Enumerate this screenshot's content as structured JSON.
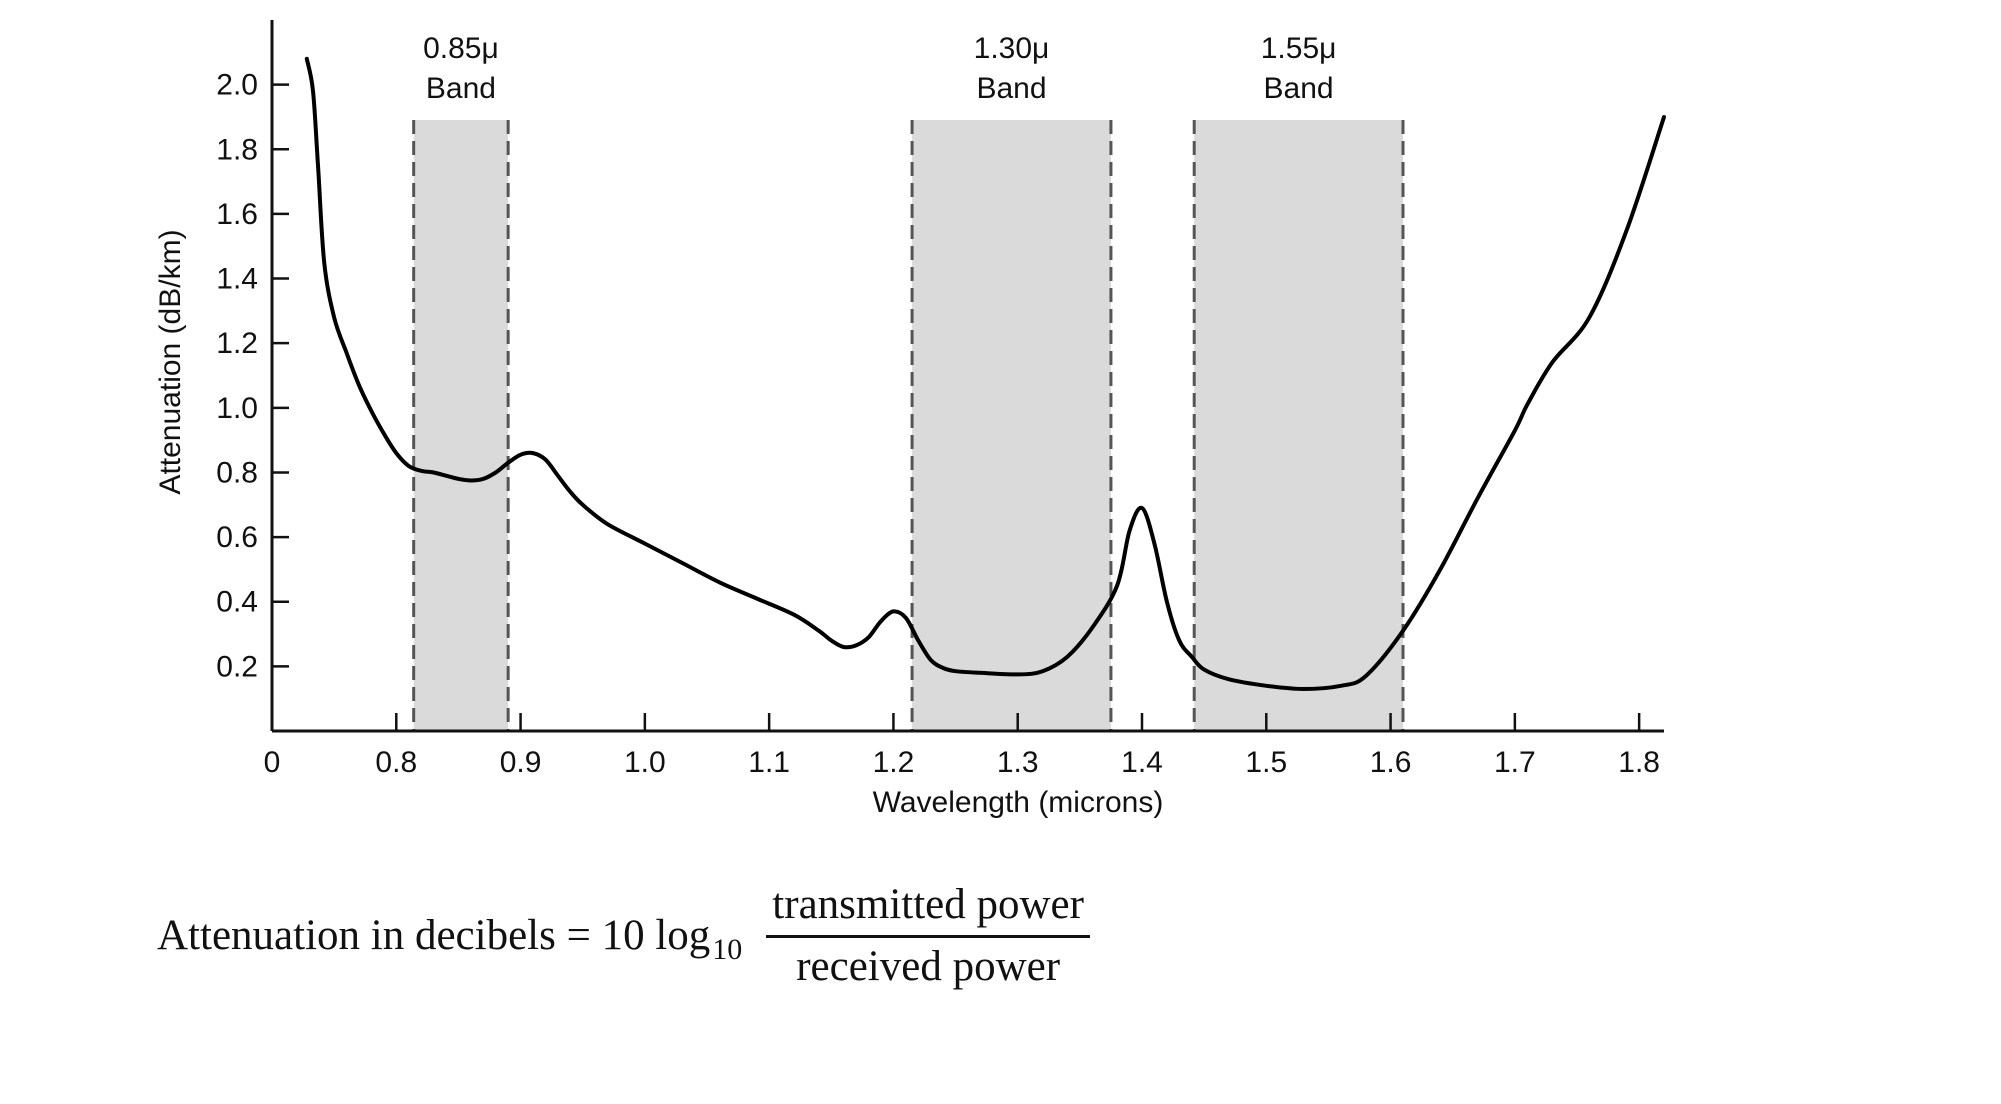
{
  "chart_data": {
    "type": "line",
    "title": "",
    "xlabel": "Wavelength (microns)",
    "ylabel": "Attenuation (dB/km)",
    "x_ticks": [
      {
        "value": 0.7,
        "label": "0"
      },
      {
        "value": 0.8,
        "label": "0.8"
      },
      {
        "value": 0.9,
        "label": "0.9"
      },
      {
        "value": 1.0,
        "label": "1.0"
      },
      {
        "value": 1.1,
        "label": "1.1"
      },
      {
        "value": 1.2,
        "label": "1.2"
      },
      {
        "value": 1.3,
        "label": "1.3"
      },
      {
        "value": 1.4,
        "label": "1.4"
      },
      {
        "value": 1.5,
        "label": "1.5"
      },
      {
        "value": 1.6,
        "label": "1.6"
      },
      {
        "value": 1.7,
        "label": "1.7"
      },
      {
        "value": 1.8,
        "label": "1.8"
      }
    ],
    "y_ticks": [
      {
        "value": 0.2,
        "label": "0.2"
      },
      {
        "value": 0.4,
        "label": "0.4"
      },
      {
        "value": 0.6,
        "label": "0.6"
      },
      {
        "value": 0.8,
        "label": "0.8"
      },
      {
        "value": 1.0,
        "label": "1.0"
      },
      {
        "value": 1.2,
        "label": "1.2"
      },
      {
        "value": 1.4,
        "label": "1.4"
      },
      {
        "value": 1.6,
        "label": "1.6"
      },
      {
        "value": 1.8,
        "label": "1.8"
      },
      {
        "value": 2.0,
        "label": "2.0"
      }
    ],
    "xlim": [
      0.7,
      1.82
    ],
    "ylim": [
      0.0,
      2.2
    ],
    "grid": false,
    "bands": [
      {
        "label_line1": "0.85μ",
        "label_line2": "Band",
        "x_start": 0.814,
        "x_end": 0.89
      },
      {
        "label_line1": "1.30μ",
        "label_line2": "Band",
        "x_start": 1.215,
        "x_end": 1.375
      },
      {
        "label_line1": "1.55μ",
        "label_line2": "Band",
        "x_start": 1.442,
        "x_end": 1.61
      }
    ],
    "series": [
      {
        "x": [
          0.728,
          0.733,
          0.737,
          0.742,
          0.75,
          0.76,
          0.77,
          0.78,
          0.79,
          0.8,
          0.81,
          0.82,
          0.83,
          0.84,
          0.85,
          0.86,
          0.87,
          0.88,
          0.89,
          0.9,
          0.91,
          0.92,
          0.93,
          0.94,
          0.95,
          0.97,
          1.0,
          1.03,
          1.06,
          1.09,
          1.12,
          1.14,
          1.15,
          1.16,
          1.17,
          1.18,
          1.19,
          1.2,
          1.21,
          1.22,
          1.23,
          1.24,
          1.25,
          1.27,
          1.3,
          1.32,
          1.34,
          1.36,
          1.38,
          1.39,
          1.4,
          1.41,
          1.42,
          1.43,
          1.44,
          1.45,
          1.47,
          1.5,
          1.53,
          1.56,
          1.58,
          1.61,
          1.64,
          1.67,
          1.7,
          1.71,
          1.73,
          1.76,
          1.79,
          1.82
        ],
        "y": [
          2.08,
          1.98,
          1.75,
          1.45,
          1.28,
          1.17,
          1.07,
          0.99,
          0.92,
          0.86,
          0.82,
          0.805,
          0.8,
          0.79,
          0.78,
          0.775,
          0.78,
          0.8,
          0.83,
          0.855,
          0.86,
          0.84,
          0.79,
          0.74,
          0.7,
          0.64,
          0.58,
          0.52,
          0.46,
          0.41,
          0.36,
          0.31,
          0.28,
          0.26,
          0.265,
          0.29,
          0.34,
          0.37,
          0.35,
          0.28,
          0.22,
          0.195,
          0.185,
          0.18,
          0.175,
          0.185,
          0.23,
          0.32,
          0.45,
          0.62,
          0.69,
          0.58,
          0.4,
          0.28,
          0.23,
          0.19,
          0.16,
          0.14,
          0.13,
          0.14,
          0.17,
          0.31,
          0.5,
          0.72,
          0.93,
          1.01,
          1.14,
          1.28,
          1.55,
          1.9
        ]
      }
    ]
  },
  "formula": {
    "lhs": "Attenuation in decibels = 10 log",
    "subscript": "10",
    "numerator": "transmitted power",
    "denominator": "received power"
  }
}
